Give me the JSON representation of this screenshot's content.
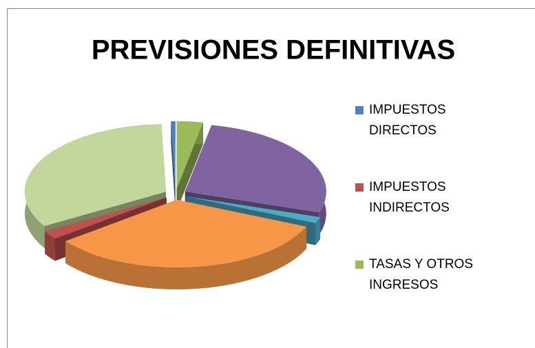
{
  "chart_data": {
    "type": "pie3d",
    "title": "PREVISIONES DEFINITIVAS",
    "categories": [
      "IMPUESTOS DIRECTOS",
      null,
      "IMPUESTOS INDIRECTOS",
      null,
      null,
      null,
      "TASAS Y OTROS INGRESOS"
    ],
    "values": [
      0.5,
      33,
      2,
      33,
      1.5,
      27,
      3
    ],
    "colors": [
      "#4F81BD",
      "#C3D69B",
      "#C0504D",
      "#F79646",
      "#4BACC6",
      "#8064A2",
      "#9BBB59"
    ],
    "legend": "right"
  }
}
